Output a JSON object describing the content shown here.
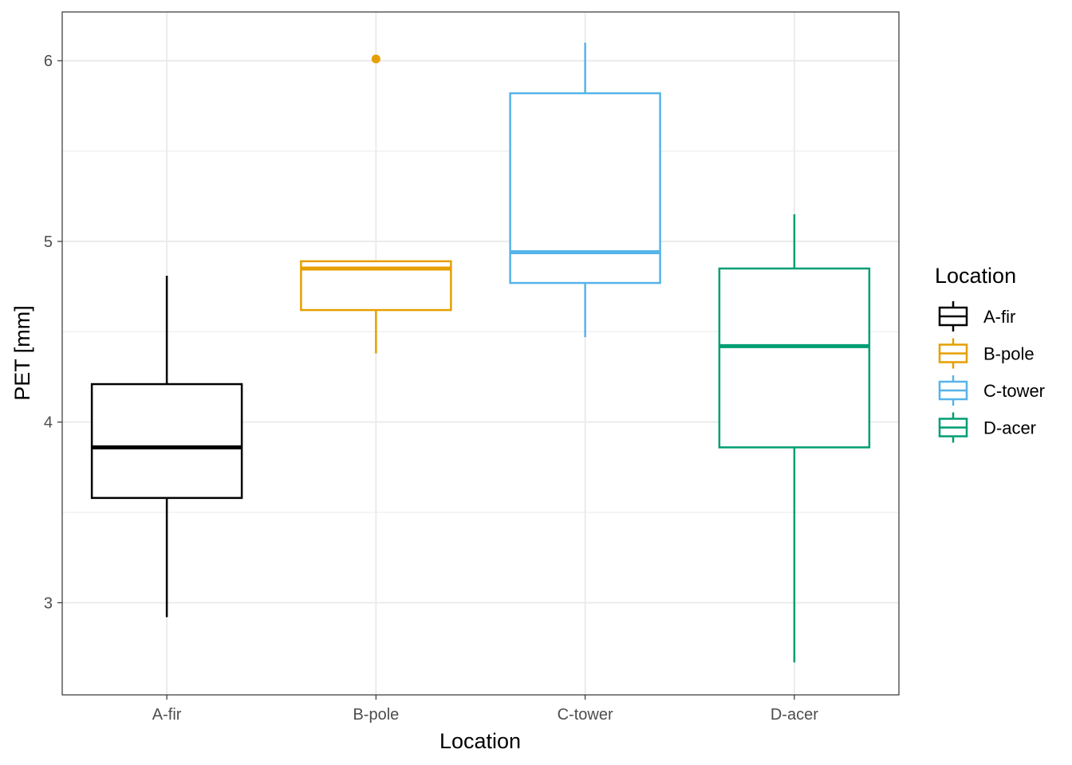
{
  "chart_data": {
    "type": "box",
    "title": "",
    "xlabel": "Location",
    "ylabel": "PET [mm]",
    "ylim": [
      2.49,
      6.27
    ],
    "yticks": [
      3,
      4,
      5,
      6
    ],
    "grid": true,
    "legend": {
      "title": "Location",
      "position": "right"
    },
    "categories": [
      "A-fir",
      "B-pole",
      "C-tower",
      "D-acer"
    ],
    "series": [
      {
        "name": "A-fir",
        "color": "#000000",
        "lower": 2.92,
        "q1": 3.58,
        "median": 3.86,
        "q3": 4.21,
        "upper": 4.81,
        "outliers": []
      },
      {
        "name": "B-pole",
        "color": "#E69F00",
        "lower": 4.38,
        "q1": 4.62,
        "median": 4.85,
        "q3": 4.89,
        "upper": 4.89,
        "outliers": [
          6.01
        ]
      },
      {
        "name": "C-tower",
        "color": "#56B4E9",
        "lower": 4.47,
        "q1": 4.77,
        "median": 4.94,
        "q3": 5.82,
        "upper": 6.1,
        "outliers": []
      },
      {
        "name": "D-acer",
        "color": "#009E73",
        "lower": 2.67,
        "q1": 3.86,
        "median": 4.42,
        "q3": 4.85,
        "upper": 5.15,
        "outliers": []
      }
    ]
  }
}
